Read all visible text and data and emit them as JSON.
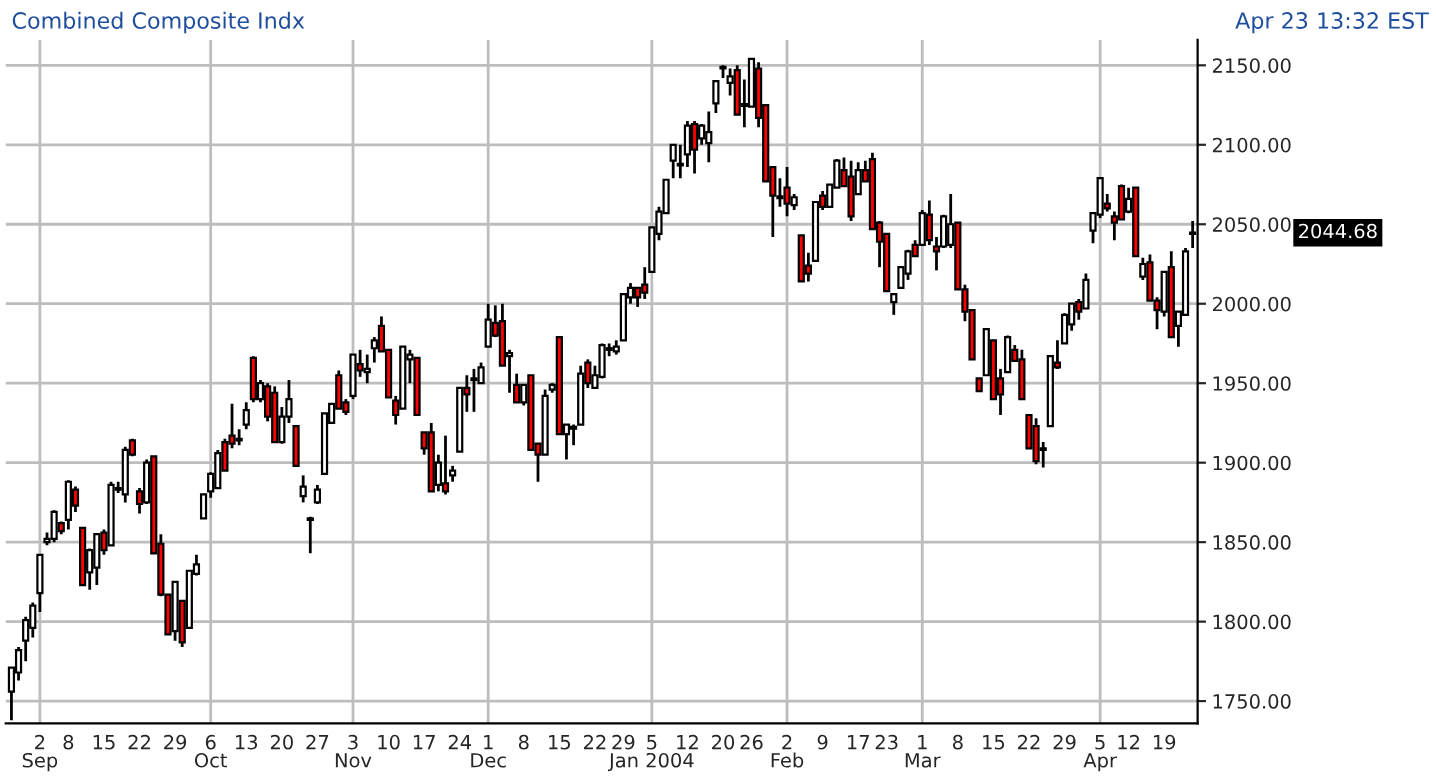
{
  "chart_data": {
    "type": "candlestick",
    "title": "Combined Composite Indx",
    "subtitle": "Apr 23 13:32 EST",
    "categories": [
      null,
      null,
      null,
      null,
      "2\nSep",
      null,
      null,
      null,
      "8",
      null,
      null,
      null,
      null,
      "15",
      null,
      null,
      null,
      null,
      "22",
      null,
      null,
      null,
      null,
      "29",
      null,
      null,
      null,
      null,
      "6\nOct",
      null,
      null,
      null,
      null,
      "13",
      null,
      null,
      null,
      null,
      "20",
      null,
      null,
      null,
      null,
      "27",
      null,
      null,
      null,
      null,
      "3\nNov",
      null,
      null,
      null,
      null,
      "10",
      null,
      null,
      null,
      null,
      "17",
      null,
      null,
      null,
      null,
      "24",
      null,
      null,
      null,
      "1\nDec",
      null,
      null,
      null,
      null,
      "8",
      null,
      null,
      null,
      null,
      "15",
      null,
      null,
      null,
      null,
      "22",
      null,
      null,
      null,
      "29",
      null,
      null,
      null,
      "5\nJan 2004",
      null,
      null,
      null,
      null,
      "12",
      null,
      null,
      null,
      null,
      "20",
      null,
      null,
      null,
      "26",
      null,
      null,
      null,
      null,
      "2\nFeb",
      null,
      null,
      null,
      null,
      "9",
      null,
      null,
      null,
      null,
      "17",
      null,
      null,
      null,
      "23",
      null,
      null,
      null,
      null,
      "1\nMar",
      null,
      null,
      null,
      null,
      "8",
      null,
      null,
      null,
      null,
      "15",
      null,
      null,
      null,
      null,
      "22",
      null,
      null,
      null,
      null,
      "29",
      null,
      null,
      null,
      null,
      "5\nApr",
      null,
      null,
      null,
      "12",
      null,
      null,
      null,
      null,
      "19",
      null,
      null,
      null,
      null
    ],
    "ohlc": [
      [
        1756,
        1771,
        1738,
        1771
      ],
      [
        1768,
        1784,
        1763,
        1782
      ],
      [
        1788,
        1803,
        1775,
        1801
      ],
      [
        1796,
        1812,
        1790,
        1810
      ],
      [
        1818,
        1842,
        1806,
        1842
      ],
      [
        1850,
        1856,
        1848,
        1852
      ],
      [
        1852,
        1870,
        1850,
        1869
      ],
      [
        1862,
        1863,
        1855,
        1857
      ],
      [
        1864,
        1889,
        1858,
        1888
      ],
      [
        1883,
        1885,
        1869,
        1873
      ],
      [
        1859,
        1859,
        1823,
        1823
      ],
      [
        1831,
        1846,
        1820,
        1845
      ],
      [
        1834,
        1855,
        1823,
        1855
      ],
      [
        1856,
        1858,
        1842,
        1845
      ],
      [
        1848,
        1888,
        1848,
        1886
      ],
      [
        1883,
        1888,
        1881,
        1884
      ],
      [
        1880,
        1910,
        1875,
        1908
      ],
      [
        1914,
        1915,
        1904,
        1905
      ],
      [
        1882,
        1884,
        1868,
        1874
      ],
      [
        1875,
        1902,
        1874,
        1900
      ],
      [
        1904,
        1904,
        1843,
        1843
      ],
      [
        1849,
        1855,
        1816,
        1817
      ],
      [
        1817,
        1817,
        1792,
        1792
      ],
      [
        1794,
        1825,
        1788,
        1825
      ],
      [
        1813,
        1813,
        1784,
        1787
      ],
      [
        1796,
        1832,
        1796,
        1832
      ],
      [
        1830,
        1842,
        1829,
        1836
      ],
      [
        1865,
        1880,
        1865,
        1880
      ],
      [
        1882,
        1894,
        1878,
        1893
      ],
      [
        1884,
        1908,
        1884,
        1906
      ],
      [
        1913,
        1915,
        1895,
        1895
      ],
      [
        1917,
        1937,
        1909,
        1912
      ],
      [
        1914,
        1921,
        1911,
        1915
      ],
      [
        1924,
        1938,
        1921,
        1933
      ],
      [
        1966,
        1967,
        1938,
        1940
      ],
      [
        1940,
        1952,
        1938,
        1950
      ],
      [
        1948,
        1950,
        1926,
        1929
      ],
      [
        1944,
        1948,
        1913,
        1913
      ],
      [
        1913,
        1935,
        1912,
        1929
      ],
      [
        1929,
        1952,
        1925,
        1940
      ],
      [
        1923,
        1923,
        1898,
        1898
      ],
      [
        1879,
        1892,
        1875,
        1885
      ],
      [
        1864,
        1866,
        1843,
        1865
      ],
      [
        1875,
        1886,
        1874,
        1883
      ],
      [
        1893,
        1931,
        1893,
        1931
      ],
      [
        1925,
        1937,
        1925,
        1937
      ],
      [
        1955,
        1958,
        1934,
        1934
      ],
      [
        1938,
        1940,
        1930,
        1932
      ],
      [
        1942,
        1968,
        1940,
        1968
      ],
      [
        1962,
        1971,
        1954,
        1958
      ],
      [
        1957,
        1968,
        1950,
        1959
      ],
      [
        1972,
        1979,
        1963,
        1977
      ],
      [
        1986,
        1992,
        1970,
        1970
      ],
      [
        1971,
        1971,
        1941,
        1941
      ],
      [
        1939,
        1942,
        1924,
        1930
      ],
      [
        1934,
        1973,
        1934,
        1973
      ],
      [
        1965,
        1971,
        1950,
        1968
      ],
      [
        1966,
        1966,
        1930,
        1930
      ],
      [
        1919,
        1919,
        1905,
        1909
      ],
      [
        1919,
        1925,
        1882,
        1882
      ],
      [
        1886,
        1905,
        1882,
        1900
      ],
      [
        1887,
        1917,
        1880,
        1882
      ],
      [
        1892,
        1898,
        1888,
        1895
      ],
      [
        1907,
        1947,
        1907,
        1947
      ],
      [
        1947,
        1955,
        1932,
        1943
      ],
      [
        1952,
        1959,
        1932,
        1953
      ],
      [
        1950,
        1963,
        1950,
        1960
      ],
      [
        1973,
        2000,
        1973,
        1990
      ],
      [
        1988,
        1999,
        1979,
        1980
      ],
      [
        1989,
        2000,
        1961,
        1961
      ],
      [
        1967,
        1971,
        1944,
        1969
      ],
      [
        1949,
        1956,
        1938,
        1938
      ],
      [
        1938,
        1949,
        1936,
        1949
      ],
      [
        1955,
        1955,
        1908,
        1908
      ],
      [
        1912,
        1912,
        1888,
        1905
      ],
      [
        1905,
        1946,
        1905,
        1942
      ],
      [
        1946,
        1950,
        1944,
        1949
      ],
      [
        1979,
        1979,
        1918,
        1918
      ],
      [
        1918,
        1924,
        1902,
        1924
      ],
      [
        1922,
        1924,
        1911,
        1922
      ],
      [
        1924,
        1961,
        1924,
        1956
      ],
      [
        1963,
        1965,
        1947,
        1950
      ],
      [
        1947,
        1961,
        1947,
        1955
      ],
      [
        1954,
        1975,
        1953,
        1974
      ],
      [
        1971,
        1975,
        1967,
        1972
      ],
      [
        1970,
        1977,
        1968,
        1973
      ],
      [
        1977,
        2006,
        1977,
        2006
      ],
      [
        2004,
        2013,
        2000,
        2010
      ],
      [
        2010,
        2010,
        1998,
        2004
      ],
      [
        2012,
        2023,
        2003,
        2007
      ],
      [
        2020,
        2048,
        2020,
        2048
      ],
      [
        2044,
        2061,
        2040,
        2058
      ],
      [
        2057,
        2078,
        2057,
        2078
      ],
      [
        2090,
        2100,
        2079,
        2100
      ],
      [
        2087,
        2100,
        2079,
        2088
      ],
      [
        2094,
        2115,
        2086,
        2112
      ],
      [
        2113,
        2115,
        2082,
        2097
      ],
      [
        2104,
        2113,
        2100,
        2112
      ],
      [
        2101,
        2121,
        2089,
        2108
      ],
      [
        2126,
        2140,
        2120,
        2140
      ],
      [
        2148,
        2150,
        2142,
        2149
      ],
      [
        2139,
        2148,
        2131,
        2143
      ],
      [
        2147,
        2150,
        2119,
        2119
      ],
      [
        2125,
        2141,
        2111,
        2125
      ],
      [
        2124,
        2154,
        2124,
        2154
      ],
      [
        2148,
        2152,
        2111,
        2117
      ],
      [
        2125,
        2125,
        2077,
        2077
      ],
      [
        2086,
        2086,
        2042,
        2068
      ],
      [
        2067,
        2079,
        2061,
        2067
      ],
      [
        2073,
        2086,
        2055,
        2063
      ],
      [
        2062,
        2069,
        2059,
        2067
      ],
      [
        2043,
        2043,
        2014,
        2014
      ],
      [
        2024,
        2032,
        2014,
        2019
      ],
      [
        2027,
        2064,
        2027,
        2064
      ],
      [
        2068,
        2071,
        2059,
        2061
      ],
      [
        2061,
        2075,
        2061,
        2075
      ],
      [
        2073,
        2091,
        2073,
        2090
      ],
      [
        2084,
        2092,
        2074,
        2074
      ],
      [
        2080,
        2090,
        2052,
        2055
      ],
      [
        2069,
        2089,
        2069,
        2084
      ],
      [
        2084,
        2090,
        2077,
        2077
      ],
      [
        2091,
        2095,
        2047,
        2047
      ],
      [
        2051,
        2052,
        2023,
        2039
      ],
      [
        2044,
        2044,
        2008,
        2008
      ],
      [
        2001,
        2006,
        1993,
        2006
      ],
      [
        2010,
        2023,
        2010,
        2023
      ],
      [
        2019,
        2034,
        2015,
        2033
      ],
      [
        2037,
        2040,
        2030,
        2030
      ],
      [
        2037,
        2059,
        2037,
        2057
      ],
      [
        2056,
        2065,
        2037,
        2040
      ],
      [
        2036,
        2042,
        2021,
        2033
      ],
      [
        2036,
        2056,
        2035,
        2055
      ],
      [
        2037,
        2069,
        2035,
        2050
      ],
      [
        2051,
        2051,
        2009,
        2009
      ],
      [
        2009,
        2012,
        1989,
        1995
      ],
      [
        1996,
        1996,
        1965,
        1965
      ],
      [
        1953,
        1953,
        1945,
        1945
      ],
      [
        1955,
        1984,
        1955,
        1984
      ],
      [
        1977,
        1977,
        1940,
        1940
      ],
      [
        1953,
        1959,
        1930,
        1943
      ],
      [
        1957,
        1980,
        1957,
        1979
      ],
      [
        1971,
        1974,
        1964,
        1964
      ],
      [
        1965,
        1971,
        1940,
        1940
      ],
      [
        1930,
        1930,
        1909,
        1909
      ],
      [
        1923,
        1928,
        1899,
        1901
      ],
      [
        1908,
        1913,
        1897,
        1909
      ],
      [
        1923,
        1967,
        1923,
        1967
      ],
      [
        1963,
        1977,
        1959,
        1960
      ],
      [
        1975,
        1994,
        1975,
        1993
      ],
      [
        1987,
        2000,
        1983,
        2000
      ],
      [
        2001,
        2003,
        1990,
        1995
      ],
      [
        1997,
        2019,
        1997,
        2015
      ],
      [
        2046,
        2057,
        2038,
        2057
      ],
      [
        2056,
        2079,
        2054,
        2079
      ],
      [
        2063,
        2069,
        2058,
        2060
      ],
      [
        2055,
        2058,
        2040,
        2051
      ],
      [
        2074,
        2075,
        2053,
        2053
      ],
      [
        2058,
        2073,
        2057,
        2066
      ],
      [
        2073,
        2073,
        2030,
        2030
      ],
      [
        2017,
        2029,
        2015,
        2025
      ],
      [
        2026,
        2031,
        2002,
        2002
      ],
      [
        2002,
        2004,
        1984,
        1996
      ],
      [
        1995,
        2020,
        1992,
        2020
      ],
      [
        2023,
        2033,
        1979,
        1979
      ],
      [
        1986,
        1995,
        1973,
        1995
      ],
      [
        1993,
        2035,
        1993,
        2033
      ],
      [
        2044,
        2052,
        2035,
        2044.68
      ]
    ],
    "colors": [
      "#ffffff",
      "#ffffff",
      "#ffffff",
      "#ffffff",
      "#ffffff",
      "#ffffff",
      "#ffffff",
      "#ff0000",
      "#ffffff",
      "#ff0000",
      "#ff0000",
      "#ffffff",
      "#ffffff",
      "#ff0000",
      "#ffffff",
      "#ffffff",
      "#ffffff",
      "#ff0000",
      "#ff0000",
      "#ffffff",
      "#ff0000",
      "#ff0000",
      "#ff0000",
      "#ffffff",
      "#ff0000",
      "#ffffff",
      "#ffffff",
      "#ffffff",
      "#ffffff",
      "#ffffff",
      "#ff0000",
      "#ff0000",
      "#ffffff",
      "#ffffff",
      "#ff0000",
      "#ffffff",
      "#ff0000",
      "#ff0000",
      "#ffffff",
      "#ffffff",
      "#ff0000",
      "#ffffff",
      "#ffffff",
      "#ffffff",
      "#ffffff",
      "#ffffff",
      "#ff0000",
      "#ff0000",
      "#ffffff",
      "#ff0000",
      "#ffffff",
      "#ffffff",
      "#ff0000",
      "#ff0000",
      "#ff0000",
      "#ffffff",
      "#ffffff",
      "#ff0000",
      "#ff0000",
      "#ff0000",
      "#ffffff",
      "#ff0000",
      "#ffffff",
      "#ffffff",
      "#ff0000",
      "#ffffff",
      "#ffffff",
      "#ffffff",
      "#ff0000",
      "#ff0000",
      "#ffffff",
      "#ff0000",
      "#ffffff",
      "#ff0000",
      "#ff0000",
      "#ffffff",
      "#ffffff",
      "#ff0000",
      "#ffffff",
      "#ffffff",
      "#ffffff",
      "#ff0000",
      "#ffffff",
      "#ffffff",
      "#ffffff",
      "#ffffff",
      "#ffffff",
      "#ffffff",
      "#ff0000",
      "#ff0000",
      "#ffffff",
      "#ffffff",
      "#ffffff",
      "#ffffff",
      "#ffffff",
      "#ffffff",
      "#ff0000",
      "#ffffff",
      "#ffffff",
      "#ffffff",
      "#ffffff",
      "#ffffff",
      "#ff0000",
      "#ffffff",
      "#ffffff",
      "#ff0000",
      "#ff0000",
      "#ff0000",
      "#ffffff",
      "#ff0000",
      "#ffffff",
      "#ff0000",
      "#ff0000",
      "#ffffff",
      "#ff0000",
      "#ffffff",
      "#ffffff",
      "#ff0000",
      "#ff0000",
      "#ffffff",
      "#ff0000",
      "#ff0000",
      "#ff0000",
      "#ff0000",
      "#ffffff",
      "#ffffff",
      "#ffffff",
      "#ff0000",
      "#ffffff",
      "#ff0000",
      "#ff0000",
      "#ffffff",
      "#ffffff",
      "#ff0000",
      "#ff0000",
      "#ff0000",
      "#ff0000",
      "#ffffff",
      "#ff0000",
      "#ff0000",
      "#ffffff",
      "#ff0000",
      "#ff0000",
      "#ff0000",
      "#ff0000",
      "#ffffff",
      "#ffffff",
      "#ff0000",
      "#ffffff",
      "#ffffff",
      "#ff0000",
      "#ffffff",
      "#ffffff",
      "#ffffff",
      "#ff0000",
      "#ff0000",
      "#ff0000",
      "#ffffff",
      "#ff0000",
      "#ffffff",
      "#ff0000",
      "#ff0000",
      "#ffffff",
      "#ff0000",
      "#ffffff",
      "#ffffff",
      "#ffffff"
    ],
    "ylim": [
      1736,
      2166
    ],
    "yticks": [
      {
        "value": 1750,
        "label": "1750.00"
      },
      {
        "value": 1800,
        "label": "1800.00"
      },
      {
        "value": 1850,
        "label": "1850.00"
      },
      {
        "value": 1900,
        "label": "1900.00"
      },
      {
        "value": 1950,
        "label": "1950.00"
      },
      {
        "value": 2000,
        "label": "2000.00"
      },
      {
        "value": 2050,
        "label": "2050.00"
      },
      {
        "value": 2100,
        "label": "2100.00"
      },
      {
        "value": 2150,
        "label": "2150.00"
      }
    ],
    "annotations": [
      "2044.68"
    ],
    "grid": true
  }
}
